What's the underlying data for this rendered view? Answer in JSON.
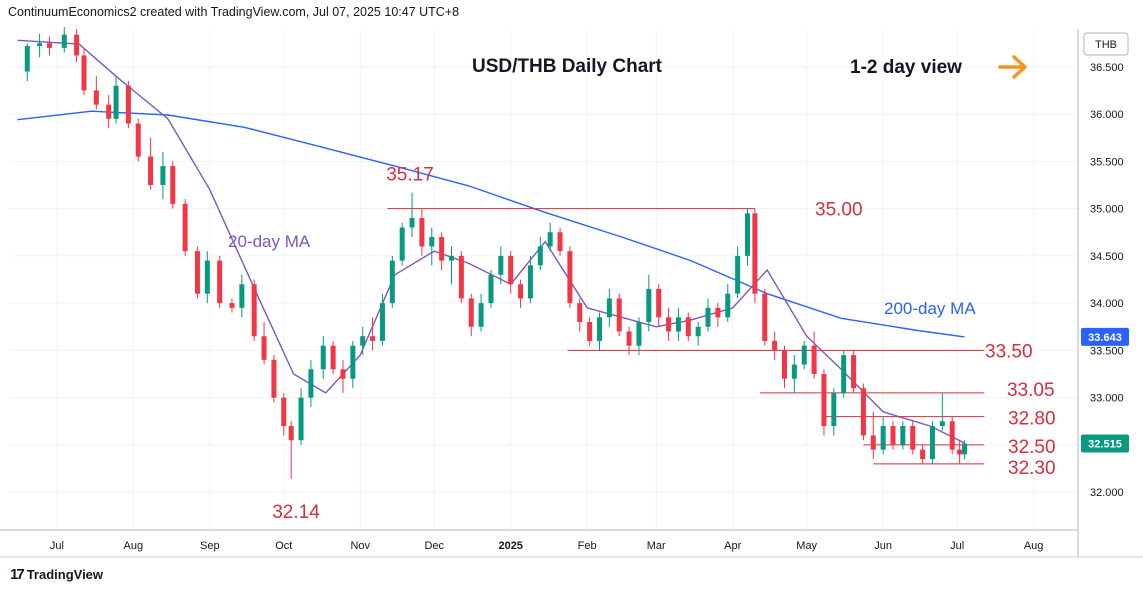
{
  "header": {
    "text": "ContinuumEconomics2 created with TradingView.com, Jul 07, 2025 10:47 UTC+8"
  },
  "footer": {
    "brand": "TradingView",
    "logo_glyph": "17"
  },
  "chart_data": {
    "type": "candlestick",
    "title": "USD/THB Daily Chart",
    "view_label": "1-2 day view",
    "view_icon": "arrow-right-icon",
    "currency": "THB",
    "ylim": [
      31.6,
      36.9
    ],
    "y_ticks": [
      "36.500",
      "36.000",
      "35.500",
      "35.000",
      "34.500",
      "34.000",
      "33.500",
      "33.000",
      "32.500",
      "32.000"
    ],
    "x_ticks": [
      "Jul",
      "Aug",
      "Sep",
      "Oct",
      "Nov",
      "Dec",
      "2025",
      "Feb",
      "Mar",
      "Apr",
      "May",
      "Jun",
      "Jul",
      "Aug"
    ],
    "price_labels": [
      {
        "value": 33.643,
        "text": "33.643",
        "color": "#2962ff"
      },
      {
        "value": 32.515,
        "text": "32.515",
        "color": "#089981"
      }
    ],
    "levels": [
      {
        "text": "35.00",
        "value": 35.0
      },
      {
        "text": "33.50",
        "value": 33.5
      },
      {
        "text": "33.05",
        "value": 33.05
      },
      {
        "text": "32.80",
        "value": 32.8
      },
      {
        "text": "32.50",
        "value": 32.5
      },
      {
        "text": "32.30",
        "value": 32.3
      }
    ],
    "extremes": [
      {
        "text": "35.17",
        "value": 35.17
      },
      {
        "text": "32.14",
        "value": 32.14
      }
    ],
    "ma_labels": {
      "ma20": "20-day MA",
      "ma200": "200-day MA"
    },
    "colors": {
      "up": "#089981",
      "down": "#f23645",
      "ma20": "#7e57c2",
      "ma200": "#2962ff",
      "level": "#d32f3f",
      "annotation": "#d32f3f",
      "arrow": "#f7931a"
    },
    "ma200": [
      [
        "2024-06-15",
        35.94
      ],
      [
        "2024-07-15",
        36.03
      ],
      [
        "2024-08-15",
        35.99
      ],
      [
        "2024-09-15",
        35.86
      ],
      [
        "2024-10-15",
        35.66
      ],
      [
        "2024-11-15",
        35.45
      ],
      [
        "2024-12-15",
        35.24
      ],
      [
        "2025-01-15",
        34.96
      ],
      [
        "2025-02-15",
        34.7
      ],
      [
        "2025-03-15",
        34.45
      ],
      [
        "2025-04-15",
        34.1
      ],
      [
        "2025-05-15",
        33.84
      ],
      [
        "2025-06-15",
        33.71
      ],
      [
        "2025-07-04",
        33.643
      ]
    ],
    "ma20": [
      [
        "2024-06-15",
        36.78
      ],
      [
        "2024-07-10",
        36.74
      ],
      [
        "2024-07-25",
        36.4
      ],
      [
        "2024-08-15",
        35.95
      ],
      [
        "2024-09-01",
        35.2
      ],
      [
        "2024-09-20",
        34.1
      ],
      [
        "2024-10-05",
        33.25
      ],
      [
        "2024-10-18",
        33.05
      ],
      [
        "2024-11-01",
        33.45
      ],
      [
        "2024-11-15",
        34.3
      ],
      [
        "2024-12-01",
        34.55
      ],
      [
        "2024-12-15",
        34.42
      ],
      [
        "2025-01-01",
        34.2
      ],
      [
        "2025-01-15",
        34.65
      ],
      [
        "2025-02-01",
        33.95
      ],
      [
        "2025-02-15",
        33.85
      ],
      [
        "2025-03-01",
        33.75
      ],
      [
        "2025-03-15",
        33.82
      ],
      [
        "2025-04-01",
        33.95
      ],
      [
        "2025-04-15",
        34.35
      ],
      [
        "2025-05-01",
        33.65
      ],
      [
        "2025-05-15",
        33.3
      ],
      [
        "2025-06-01",
        32.85
      ],
      [
        "2025-06-20",
        32.7
      ],
      [
        "2025-07-04",
        32.52
      ]
    ],
    "candles": [
      [
        "2024-06-19",
        36.45,
        36.75,
        36.35,
        36.72
      ],
      [
        "2024-06-24",
        36.72,
        36.85,
        36.6,
        36.75
      ],
      [
        "2024-06-28",
        36.75,
        36.82,
        36.62,
        36.7
      ],
      [
        "2024-07-04",
        36.7,
        36.92,
        36.65,
        36.84
      ],
      [
        "2024-07-09",
        36.84,
        36.9,
        36.55,
        36.62
      ],
      [
        "2024-07-12",
        36.62,
        36.7,
        36.2,
        36.25
      ],
      [
        "2024-07-17",
        36.25,
        36.4,
        36.05,
        36.1
      ],
      [
        "2024-07-22",
        36.1,
        36.2,
        35.85,
        35.95
      ],
      [
        "2024-07-25",
        35.95,
        36.4,
        35.9,
        36.3
      ],
      [
        "2024-07-30",
        36.3,
        36.35,
        35.85,
        35.9
      ],
      [
        "2024-08-03",
        35.9,
        35.95,
        35.5,
        35.55
      ],
      [
        "2024-08-08",
        35.55,
        35.75,
        35.2,
        35.25
      ],
      [
        "2024-08-13",
        35.25,
        35.6,
        35.1,
        35.45
      ],
      [
        "2024-08-17",
        35.45,
        35.5,
        35.0,
        35.05
      ],
      [
        "2024-08-22",
        35.05,
        35.1,
        34.5,
        34.55
      ],
      [
        "2024-08-27",
        34.55,
        34.6,
        34.05,
        34.1
      ],
      [
        "2024-08-31",
        34.1,
        34.55,
        34.0,
        34.45
      ],
      [
        "2024-09-05",
        34.45,
        34.5,
        33.95,
        34.0
      ],
      [
        "2024-09-10",
        34.0,
        34.05,
        33.9,
        33.95
      ],
      [
        "2024-09-14",
        33.95,
        34.3,
        33.85,
        34.2
      ],
      [
        "2024-09-19",
        34.2,
        34.25,
        33.6,
        33.65
      ],
      [
        "2024-09-23",
        33.65,
        33.8,
        33.35,
        33.4
      ],
      [
        "2024-09-27",
        33.4,
        33.45,
        32.95,
        33.0
      ],
      [
        "2024-10-01",
        33.0,
        33.05,
        32.6,
        32.7
      ],
      [
        "2024-10-04",
        32.7,
        32.75,
        32.14,
        32.55
      ],
      [
        "2024-10-08",
        32.55,
        33.1,
        32.5,
        33.0
      ],
      [
        "2024-10-12",
        33.0,
        33.4,
        32.9,
        33.3
      ],
      [
        "2024-10-17",
        33.3,
        33.65,
        33.2,
        33.55
      ],
      [
        "2024-10-21",
        33.55,
        33.6,
        33.25,
        33.3
      ],
      [
        "2024-10-25",
        33.3,
        33.4,
        33.05,
        33.2
      ],
      [
        "2024-10-29",
        33.2,
        33.6,
        33.1,
        33.55
      ],
      [
        "2024-11-02",
        33.55,
        33.75,
        33.45,
        33.65
      ],
      [
        "2024-11-06",
        33.65,
        33.85,
        33.5,
        33.6
      ],
      [
        "2024-11-10",
        33.6,
        34.1,
        33.55,
        34.0
      ],
      [
        "2024-11-14",
        34.0,
        34.5,
        33.95,
        34.45
      ],
      [
        "2024-11-18",
        34.45,
        34.85,
        34.4,
        34.8
      ],
      [
        "2024-11-22",
        34.8,
        35.17,
        34.7,
        34.9
      ],
      [
        "2024-11-26",
        34.9,
        35.0,
        34.5,
        34.6
      ],
      [
        "2024-11-30",
        34.6,
        34.8,
        34.4,
        34.7
      ],
      [
        "2024-12-04",
        34.7,
        34.75,
        34.35,
        34.45
      ],
      [
        "2024-12-08",
        34.45,
        34.6,
        34.2,
        34.5
      ],
      [
        "2024-12-12",
        34.5,
        34.55,
        34.0,
        34.05
      ],
      [
        "2024-12-16",
        34.05,
        34.1,
        33.65,
        33.75
      ],
      [
        "2024-12-20",
        33.75,
        34.1,
        33.7,
        34.0
      ],
      [
        "2024-12-24",
        34.0,
        34.35,
        33.95,
        34.3
      ],
      [
        "2024-12-28",
        34.3,
        34.6,
        34.2,
        34.5
      ],
      [
        "2025-01-01",
        34.5,
        34.55,
        34.1,
        34.2
      ],
      [
        "2025-01-05",
        34.2,
        34.25,
        33.95,
        34.05
      ],
      [
        "2025-01-09",
        34.05,
        34.5,
        34.0,
        34.4
      ],
      [
        "2025-01-13",
        34.4,
        34.7,
        34.35,
        34.6
      ],
      [
        "2025-01-17",
        34.6,
        34.85,
        34.55,
        34.75
      ],
      [
        "2025-01-21",
        34.75,
        34.8,
        34.5,
        34.55
      ],
      [
        "2025-01-25",
        34.55,
        34.6,
        33.95,
        34.0
      ],
      [
        "2025-01-29",
        34.0,
        34.05,
        33.7,
        33.8
      ],
      [
        "2025-02-02",
        33.8,
        33.85,
        33.55,
        33.6
      ],
      [
        "2025-02-06",
        33.6,
        33.9,
        33.5,
        33.85
      ],
      [
        "2025-02-10",
        33.85,
        34.15,
        33.75,
        34.05
      ],
      [
        "2025-02-14",
        34.05,
        34.1,
        33.65,
        33.7
      ],
      [
        "2025-02-18",
        33.7,
        33.75,
        33.45,
        33.55
      ],
      [
        "2025-02-22",
        33.55,
        33.85,
        33.45,
        33.8
      ],
      [
        "2025-02-26",
        33.8,
        34.3,
        33.7,
        34.15
      ],
      [
        "2025-03-02",
        34.15,
        34.2,
        33.75,
        33.85
      ],
      [
        "2025-03-06",
        33.85,
        33.95,
        33.6,
        33.7
      ],
      [
        "2025-03-10",
        33.7,
        33.95,
        33.6,
        33.85
      ],
      [
        "2025-03-14",
        33.85,
        33.9,
        33.6,
        33.65
      ],
      [
        "2025-03-18",
        33.65,
        33.8,
        33.55,
        33.75
      ],
      [
        "2025-03-22",
        33.75,
        34.05,
        33.7,
        33.95
      ],
      [
        "2025-03-26",
        33.95,
        34.0,
        33.75,
        33.85
      ],
      [
        "2025-03-30",
        33.85,
        34.2,
        33.8,
        34.1
      ],
      [
        "2025-04-03",
        34.1,
        34.6,
        34.05,
        34.5
      ],
      [
        "2025-04-07",
        34.5,
        35.0,
        34.4,
        34.95
      ],
      [
        "2025-04-10",
        34.95,
        35.0,
        34.0,
        34.1
      ],
      [
        "2025-04-14",
        34.1,
        34.15,
        33.55,
        33.6
      ],
      [
        "2025-04-18",
        33.6,
        33.7,
        33.4,
        33.5
      ],
      [
        "2025-04-22",
        33.5,
        33.55,
        33.1,
        33.2
      ],
      [
        "2025-04-26",
        33.2,
        33.45,
        33.05,
        33.35
      ],
      [
        "2025-04-30",
        33.35,
        33.6,
        33.3,
        33.55
      ],
      [
        "2025-05-04",
        33.55,
        33.7,
        33.2,
        33.25
      ],
      [
        "2025-05-08",
        33.25,
        33.3,
        32.6,
        32.7
      ],
      [
        "2025-05-12",
        32.7,
        33.1,
        32.6,
        33.05
      ],
      [
        "2025-05-16",
        33.05,
        33.5,
        33.0,
        33.45
      ],
      [
        "2025-05-20",
        33.45,
        33.5,
        33.05,
        33.1
      ],
      [
        "2025-05-24",
        33.1,
        33.15,
        32.55,
        32.6
      ],
      [
        "2025-05-28",
        32.6,
        32.85,
        32.35,
        32.45
      ],
      [
        "2025-06-01",
        32.45,
        32.8,
        32.4,
        32.7
      ],
      [
        "2025-06-05",
        32.7,
        32.75,
        32.45,
        32.5
      ],
      [
        "2025-06-09",
        32.5,
        32.75,
        32.45,
        32.7
      ],
      [
        "2025-06-13",
        32.7,
        32.75,
        32.4,
        32.45
      ],
      [
        "2025-06-17",
        32.45,
        32.5,
        32.3,
        32.35
      ],
      [
        "2025-06-21",
        32.35,
        32.75,
        32.3,
        32.7
      ],
      [
        "2025-06-25",
        32.7,
        33.05,
        32.65,
        32.75
      ],
      [
        "2025-06-29",
        32.75,
        32.8,
        32.4,
        32.45
      ],
      [
        "2025-07-02",
        32.45,
        32.55,
        32.3,
        32.4
      ],
      [
        "2025-07-04",
        32.4,
        32.55,
        32.35,
        32.515
      ]
    ]
  }
}
